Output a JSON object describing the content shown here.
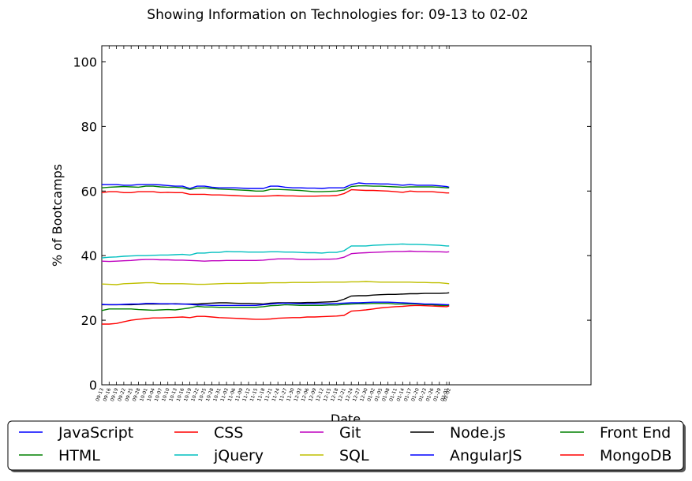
{
  "chart_data": {
    "type": "line",
    "title": "Showing Information on Technologies for: 09-13 to 02-02",
    "xlabel": "Date",
    "ylabel": "% of Bootcamps",
    "ylim": [
      0,
      105
    ],
    "yticks": [
      0,
      20,
      40,
      60,
      80,
      100
    ],
    "grid": false,
    "legend_position": "bottom",
    "legend_columns": 5,
    "x_tick_labels": [
      "09-13",
      "09-16",
      "09-19",
      "09-22",
      "09-25",
      "09-28",
      "10-01",
      "10-04",
      "10-07",
      "10-10",
      "10-13",
      "10-16",
      "10-19",
      "10-22",
      "10-25",
      "10-28",
      "10-31",
      "11-03",
      "11-06",
      "11-09",
      "11-12",
      "11-15",
      "11-18",
      "11-21",
      "11-24",
      "11-27",
      "11-30",
      "12-03",
      "12-06",
      "12-09",
      "12-12",
      "12-15",
      "12-18",
      "12-21",
      "12-24",
      "12-27",
      "12-30",
      "01-02",
      "01-05",
      "01-08",
      "01-11",
      "01-14",
      "01-17",
      "01-20",
      "01-23",
      "01-26",
      "01-29",
      "02-01",
      "02-02"
    ],
    "x_points": [
      0,
      3,
      6,
      9,
      12,
      15,
      18,
      21,
      24,
      27,
      30,
      33,
      36,
      39,
      42,
      45,
      48,
      51,
      54,
      57,
      60,
      63,
      66,
      69,
      72,
      75,
      78,
      81,
      84,
      87,
      90,
      93,
      96,
      99,
      102,
      105,
      108,
      111,
      114,
      117,
      120,
      123,
      126,
      129,
      132,
      135,
      138,
      141,
      142
    ],
    "series": [
      {
        "name": "JavaScript",
        "color": "#0000ff",
        "values": [
          62,
          62,
          62,
          61.8,
          61.8,
          62,
          62,
          62,
          61.9,
          61.7,
          61.5,
          61.5,
          60.8,
          61.5,
          61.5,
          61.2,
          61,
          61,
          61,
          60.9,
          60.8,
          60.8,
          60.8,
          61.5,
          61.5,
          61.2,
          61,
          61,
          60.9,
          60.9,
          60.8,
          61,
          61,
          61,
          62,
          62.5,
          62.3,
          62.3,
          62.2,
          62.2,
          62,
          61.8,
          62,
          61.8,
          61.8,
          61.8,
          61.6,
          61.4,
          61.2
        ]
      },
      {
        "name": "HTML",
        "color": "#008000",
        "values": [
          23,
          23.5,
          23.5,
          23.5,
          23.5,
          23.3,
          23.2,
          23.1,
          23.2,
          23.3,
          23.2,
          23.5,
          23.8,
          24.3,
          24.1,
          24.1,
          24,
          24,
          24,
          24,
          24,
          24,
          24.2,
          24.5,
          24.6,
          24.8,
          24.7,
          24.6,
          24.6,
          24.6,
          24.6,
          24.7,
          24.7,
          24.9,
          25,
          25.1,
          25.1,
          25.2,
          25.2,
          25.2,
          25,
          25,
          25,
          25,
          24.8,
          24.8,
          24.6,
          24.6,
          24.6
        ]
      },
      {
        "name": "CSS",
        "color": "#ff0000",
        "values": [
          59.5,
          59.8,
          59.8,
          59.5,
          59.5,
          59.8,
          59.8,
          59.8,
          59.5,
          59.6,
          59.5,
          59.5,
          59,
          59,
          59,
          58.8,
          58.8,
          58.7,
          58.6,
          58.5,
          58.4,
          58.4,
          58.4,
          58.5,
          58.6,
          58.5,
          58.5,
          58.4,
          58.4,
          58.4,
          58.5,
          58.5,
          58.6,
          59.2,
          60.4,
          60.3,
          60.2,
          60.2,
          60.1,
          60,
          59.8,
          59.6,
          60,
          59.8,
          59.8,
          59.8,
          59.6,
          59.4,
          59.4
        ]
      },
      {
        "name": "jQuery",
        "color": "#00bfbf",
        "values": [
          39.3,
          39.5,
          39.6,
          39.8,
          39.9,
          40,
          40,
          40.1,
          40.2,
          40.2,
          40.3,
          40.4,
          40.2,
          40.8,
          40.8,
          41,
          41,
          41.3,
          41.2,
          41.2,
          41.1,
          41.1,
          41.1,
          41.2,
          41.2,
          41.1,
          41.1,
          41,
          40.9,
          40.9,
          40.8,
          41,
          41,
          41.5,
          43,
          43,
          43,
          43.2,
          43.3,
          43.4,
          43.5,
          43.6,
          43.5,
          43.5,
          43.4,
          43.3,
          43.2,
          43,
          43
        ]
      },
      {
        "name": "Git",
        "color": "#bf00bf",
        "values": [
          38.3,
          38.2,
          38.3,
          38.4,
          38.5,
          38.7,
          38.8,
          38.8,
          38.7,
          38.7,
          38.6,
          38.6,
          38.5,
          38.4,
          38.3,
          38.4,
          38.4,
          38.5,
          38.5,
          38.5,
          38.5,
          38.5,
          38.6,
          38.8,
          39,
          39,
          39,
          38.8,
          38.8,
          38.8,
          38.9,
          38.9,
          39,
          39.5,
          40.6,
          40.8,
          40.9,
          41,
          41.1,
          41.2,
          41.3,
          41.3,
          41.4,
          41.3,
          41.3,
          41.2,
          41.2,
          41.1,
          41.2
        ]
      },
      {
        "name": "SQL",
        "color": "#bfbf00",
        "values": [
          31.2,
          31.1,
          31,
          31.3,
          31.4,
          31.5,
          31.6,
          31.6,
          31.3,
          31.3,
          31.3,
          31.3,
          31.2,
          31.1,
          31.1,
          31.2,
          31.3,
          31.4,
          31.4,
          31.4,
          31.5,
          31.5,
          31.5,
          31.6,
          31.6,
          31.6,
          31.7,
          31.7,
          31.7,
          31.7,
          31.8,
          31.8,
          31.8,
          31.8,
          31.9,
          31.9,
          32,
          31.9,
          31.8,
          31.8,
          31.8,
          31.8,
          31.8,
          31.7,
          31.7,
          31.6,
          31.6,
          31.4,
          31.3
        ]
      },
      {
        "name": "Node.js",
        "color": "#000000",
        "values": [
          24.8,
          24.8,
          24.8,
          24.8,
          24.8,
          24.9,
          25,
          25,
          25,
          25,
          25.1,
          25,
          25,
          25,
          25.2,
          25.3,
          25.4,
          25.4,
          25.3,
          25.2,
          25.2,
          25.1,
          25,
          25.3,
          25.4,
          25.4,
          25.4,
          25.4,
          25.5,
          25.5,
          25.6,
          25.7,
          25.8,
          26.5,
          27.5,
          27.6,
          27.6,
          27.8,
          27.9,
          28,
          28,
          28.1,
          28.2,
          28.2,
          28.3,
          28.3,
          28.3,
          28.4,
          28.5
        ]
      },
      {
        "name": "AngularJS",
        "color": "#0000ff",
        "values": [
          24.9,
          24.8,
          24.8,
          24.9,
          25,
          25,
          25.2,
          25.2,
          25.1,
          25.1,
          25,
          25,
          24.9,
          24.7,
          24.7,
          24.6,
          24.6,
          24.6,
          24.6,
          24.6,
          24.6,
          24.6,
          24.8,
          25,
          25.2,
          25.3,
          25.2,
          25.1,
          25.1,
          25.1,
          25.1,
          25.1,
          25.2,
          25.3,
          25.4,
          25.4,
          25.5,
          25.6,
          25.6,
          25.6,
          25.5,
          25.4,
          25.3,
          25.2,
          25,
          25,
          24.9,
          24.8,
          24.8
        ]
      },
      {
        "name": "Front End",
        "color": "#008000",
        "values": [
          61,
          61.2,
          61.3,
          61.4,
          61.3,
          61.2,
          61.5,
          61.5,
          61.3,
          61.2,
          61.2,
          61,
          60.5,
          60.9,
          61,
          60.8,
          60.6,
          60.5,
          60.4,
          60.3,
          60.2,
          60,
          60,
          60.5,
          60.5,
          60.4,
          60.3,
          60.2,
          60,
          59.8,
          59.8,
          59.9,
          60,
          60.3,
          61.4,
          61.6,
          61.6,
          61.5,
          61.5,
          61.4,
          61.3,
          61.2,
          61.3,
          61.3,
          61.3,
          61.3,
          61.2,
          61,
          61
        ]
      },
      {
        "name": "MongoDB",
        "color": "#ff0000",
        "values": [
          18.8,
          18.8,
          19,
          19.5,
          20,
          20.3,
          20.5,
          20.7,
          20.7,
          20.8,
          20.9,
          21,
          20.8,
          21.2,
          21.2,
          21,
          20.8,
          20.7,
          20.6,
          20.5,
          20.4,
          20.3,
          20.3,
          20.4,
          20.6,
          20.7,
          20.8,
          20.8,
          21,
          21,
          21.1,
          21.2,
          21.3,
          21.5,
          22.8,
          23,
          23.2,
          23.5,
          23.8,
          24,
          24.2,
          24.3,
          24.5,
          24.6,
          24.5,
          24.4,
          24.3,
          24.2,
          24.4
        ]
      }
    ]
  }
}
